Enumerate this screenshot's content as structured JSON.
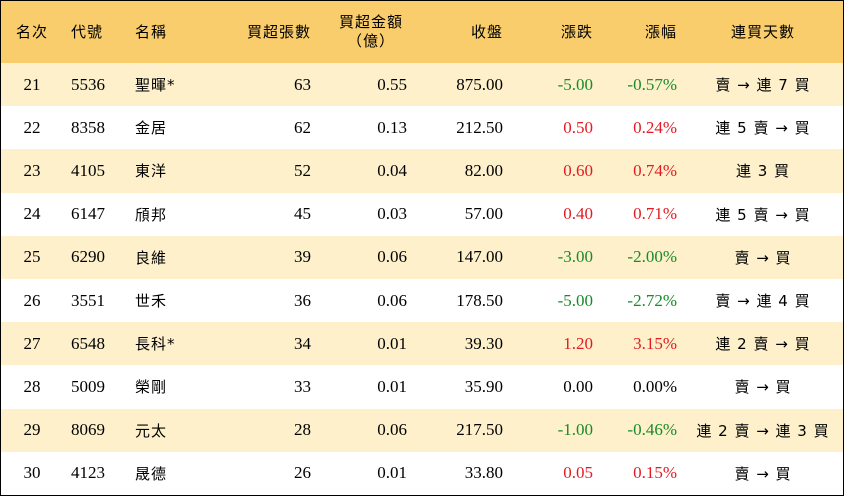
{
  "table": {
    "headers": {
      "rank": "名次",
      "code": "代號",
      "name": "名稱",
      "net_lots": "買超張數",
      "net_amount_line1": "買超金額",
      "net_amount_line2": "（億）",
      "close": "收盤",
      "change": "漲跌",
      "pct": "漲幅",
      "streak": "連買天數"
    },
    "rows": [
      {
        "rank": "21",
        "code": "5536",
        "name": "聖暉*",
        "lots": "63",
        "amount": "0.55",
        "close": "875.00",
        "change": "-5.00",
        "pct": "-0.57%",
        "dir": "down",
        "streak": "賣 → 連 7 買"
      },
      {
        "rank": "22",
        "code": "8358",
        "name": "金居",
        "lots": "62",
        "amount": "0.13",
        "close": "212.50",
        "change": "0.50",
        "pct": "0.24%",
        "dir": "up",
        "streak": "連 5 賣 → 買"
      },
      {
        "rank": "23",
        "code": "4105",
        "name": "東洋",
        "lots": "52",
        "amount": "0.04",
        "close": "82.00",
        "change": "0.60",
        "pct": "0.74%",
        "dir": "up",
        "streak": "連 3 買"
      },
      {
        "rank": "24",
        "code": "6147",
        "name": "頎邦",
        "lots": "45",
        "amount": "0.03",
        "close": "57.00",
        "change": "0.40",
        "pct": "0.71%",
        "dir": "up",
        "streak": "連 5 賣 → 買"
      },
      {
        "rank": "25",
        "code": "6290",
        "name": "良維",
        "lots": "39",
        "amount": "0.06",
        "close": "147.00",
        "change": "-3.00",
        "pct": "-2.00%",
        "dir": "down",
        "streak": "賣 → 買"
      },
      {
        "rank": "26",
        "code": "3551",
        "name": "世禾",
        "lots": "36",
        "amount": "0.06",
        "close": "178.50",
        "change": "-5.00",
        "pct": "-2.72%",
        "dir": "down",
        "streak": "賣 → 連 4 買"
      },
      {
        "rank": "27",
        "code": "6548",
        "name": "長科*",
        "lots": "34",
        "amount": "0.01",
        "close": "39.30",
        "change": "1.20",
        "pct": "3.15%",
        "dir": "up",
        "streak": "連 2 賣 → 買"
      },
      {
        "rank": "28",
        "code": "5009",
        "name": "榮剛",
        "lots": "33",
        "amount": "0.01",
        "close": "35.90",
        "change": "0.00",
        "pct": "0.00%",
        "dir": "flat",
        "streak": "賣 → 買"
      },
      {
        "rank": "29",
        "code": "8069",
        "name": "元太",
        "lots": "28",
        "amount": "0.06",
        "close": "217.50",
        "change": "-1.00",
        "pct": "-0.46%",
        "dir": "down",
        "streak": "連 2 賣 → 連 3 買"
      },
      {
        "rank": "30",
        "code": "4123",
        "name": "晟德",
        "lots": "26",
        "amount": "0.01",
        "close": "33.80",
        "change": "0.05",
        "pct": "0.15%",
        "dir": "up",
        "streak": "賣 → 買"
      }
    ]
  },
  "colors": {
    "header_bg": "#f9cd6b",
    "row_alt_bg": "#fdf0cb",
    "up": "#e21b23",
    "down": "#1a8a2a"
  }
}
